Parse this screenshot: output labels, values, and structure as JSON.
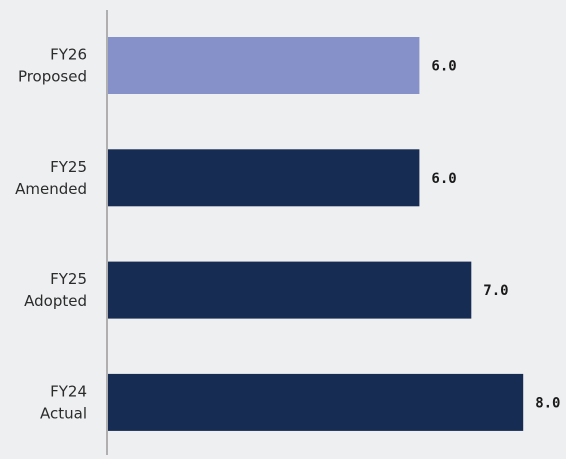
{
  "chart_data": {
    "type": "bar",
    "orientation": "horizontal",
    "categories": [
      [
        "FY26",
        "Proposed"
      ],
      [
        "FY25",
        "Amended"
      ],
      [
        "FY25",
        "Adopted"
      ],
      [
        "FY24",
        "Actual"
      ]
    ],
    "values": [
      6.0,
      6.0,
      7.0,
      8.0
    ],
    "value_labels": [
      "6.0",
      "6.0",
      "7.0",
      "8.0"
    ],
    "bar_colors": [
      "#8591c8",
      "#172c52",
      "#172c52",
      "#172c52"
    ],
    "xlim": [
      0,
      8
    ],
    "title": "",
    "xlabel": "",
    "ylabel": "",
    "grid": false,
    "legend": "none"
  },
  "colors": {
    "background": "#eeeff1",
    "axis_line": "#9a9a9a",
    "label_text": "#2b2b2b",
    "value_text": "#1a1a1a"
  }
}
